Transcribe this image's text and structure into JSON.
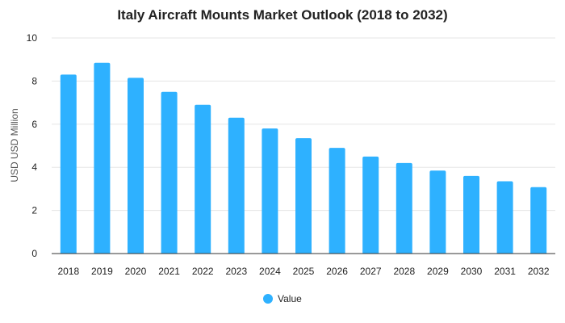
{
  "chart_data": {
    "type": "bar",
    "title": "Italy Aircraft Mounts Market Outlook (2018 to 2032)",
    "ylabel": "USD USD Million",
    "xlabel": "",
    "categories": [
      "2018",
      "2019",
      "2020",
      "2021",
      "2022",
      "2023",
      "2024",
      "2025",
      "2026",
      "2027",
      "2028",
      "2029",
      "2030",
      "2031",
      "2032"
    ],
    "series": [
      {
        "name": "Value",
        "color": "#2eb1ff",
        "values": [
          8.3,
          8.85,
          8.15,
          7.5,
          6.9,
          6.3,
          5.8,
          5.35,
          4.9,
          4.5,
          4.2,
          3.85,
          3.6,
          3.35,
          3.08
        ]
      }
    ],
    "ylim": [
      0,
      10
    ],
    "yticks": [
      0,
      2,
      4,
      6,
      8,
      10
    ],
    "grid": true,
    "legend": {
      "position": "bottom",
      "label": "Value"
    }
  }
}
